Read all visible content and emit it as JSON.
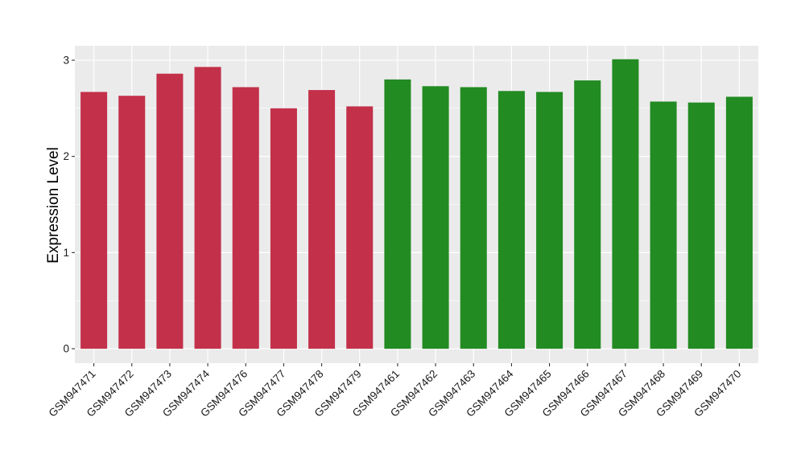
{
  "chart_data": {
    "type": "bar",
    "title": "",
    "xlabel": "",
    "ylabel": "Expression Level",
    "ylim": [
      -0.15,
      3.15
    ],
    "yticks": [
      0,
      1,
      2,
      3
    ],
    "grid": true,
    "legend": "none",
    "background": "#ebebeb",
    "gridline_color": "#ffffff",
    "categories": [
      "GSM947471",
      "GSM947472",
      "GSM947473",
      "GSM947474",
      "GSM947476",
      "GSM947477",
      "GSM947478",
      "GSM947479",
      "GSM947461",
      "GSM947462",
      "GSM947463",
      "GSM947464",
      "GSM947465",
      "GSM947466",
      "GSM947467",
      "GSM947468",
      "GSM947469",
      "GSM947470"
    ],
    "values": [
      2.67,
      2.63,
      2.86,
      2.93,
      2.72,
      2.5,
      2.69,
      2.52,
      2.8,
      2.73,
      2.72,
      2.68,
      2.67,
      2.79,
      3.01,
      2.57,
      2.56,
      2.62
    ],
    "group_colors": {
      "red": "#c3304a",
      "green": "#228b22"
    },
    "bar_colors": [
      "#c3304a",
      "#c3304a",
      "#c3304a",
      "#c3304a",
      "#c3304a",
      "#c3304a",
      "#c3304a",
      "#c3304a",
      "#228b22",
      "#228b22",
      "#228b22",
      "#228b22",
      "#228b22",
      "#228b22",
      "#228b22",
      "#228b22",
      "#228b22",
      "#228b22"
    ]
  }
}
